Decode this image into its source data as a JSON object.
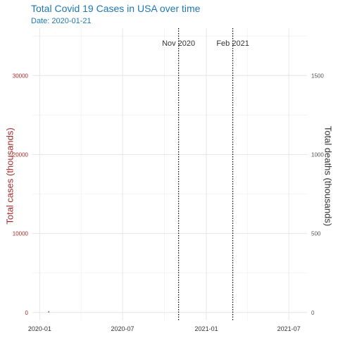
{
  "chart_data": {
    "type": "line",
    "title": "Total Covid 19 Cases in USA over time",
    "subtitle": "Date: 2020-01-21",
    "ylabel_left": "Total cases (thousands)",
    "ylabel_right": "Total deaths (thousands)",
    "x_ticks": [
      "2020-01",
      "2020-07",
      "2021-01",
      "2021-07"
    ],
    "xlim": [
      "2019-12-16",
      "2021-08-10"
    ],
    "y_left_ticks": [
      0,
      10000,
      20000,
      30000
    ],
    "ylim_left": [
      -1000,
      36000
    ],
    "y_right_ticks": [
      0,
      500,
      1000,
      1500
    ],
    "ylim_right": [
      -50,
      1800
    ],
    "grid": true,
    "annotations": [
      {
        "label": "Nov 2020",
        "date": "2020-11-01",
        "style": "dotted"
      },
      {
        "label": "Feb 2021",
        "date": "2021-02-28",
        "style": "dotted"
      }
    ],
    "series": [
      {
        "axis": "left",
        "color": "#a52a2a",
        "x": [
          "2020-01-21"
        ],
        "values": [
          0
        ]
      }
    ]
  }
}
